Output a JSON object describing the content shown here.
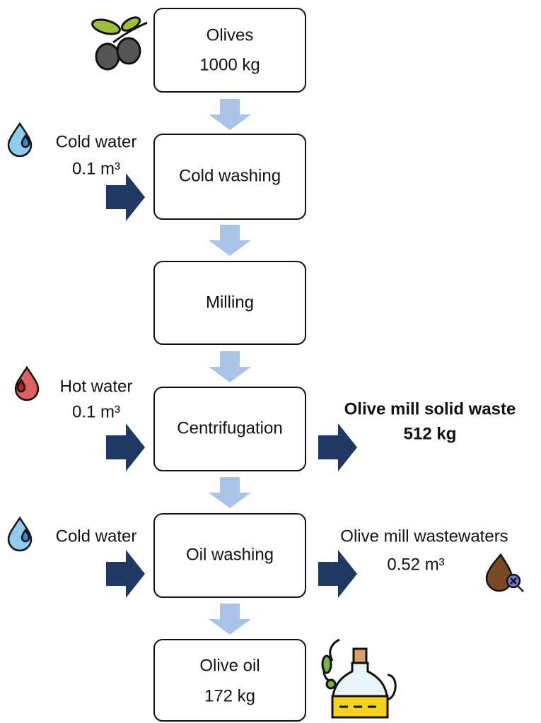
{
  "nodes": [
    {
      "lines": [
        "Olives",
        "1000 kg"
      ]
    },
    {
      "lines": [
        "Cold washing"
      ]
    },
    {
      "lines": [
        "Milling"
      ]
    },
    {
      "lines": [
        "Centrifugation"
      ]
    },
    {
      "lines": [
        "Oil washing"
      ]
    },
    {
      "lines": [
        "Olive oil",
        "172 kg"
      ]
    }
  ],
  "inputs": [
    {
      "label": "Cold water",
      "amount": "0.1 m³"
    },
    {
      "label": "Hot water",
      "amount": "0.1 m³"
    },
    {
      "label": "Cold water"
    }
  ],
  "outputs": [
    {
      "label": "Olive mill solid waste",
      "amount": "512 kg"
    },
    {
      "label": "Olive mill wastewaters",
      "amount": "0.52 m³"
    }
  ]
}
